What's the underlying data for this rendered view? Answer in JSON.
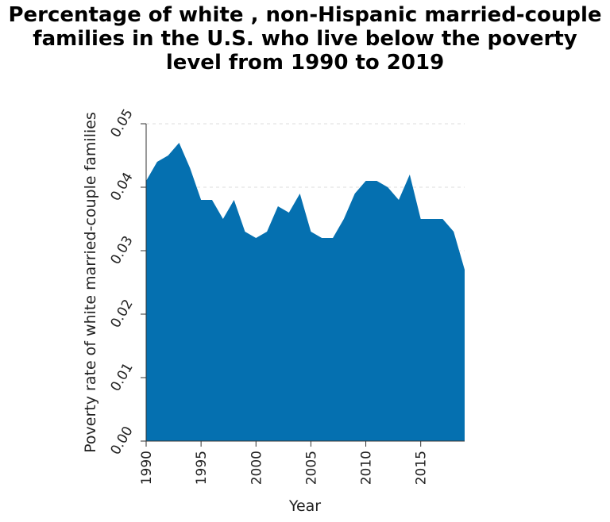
{
  "chart_data": {
    "type": "area",
    "title_lines": [
      "Percentage of white , non-Hispanic married-couple",
      "families in the U.S. who live below the poverty",
      "level from 1990 to 2019"
    ],
    "xlabel": "Year",
    "ylabel": "Poverty rate of white married-couple families",
    "xlim": [
      1990,
      2019
    ],
    "ylim": [
      0,
      0.05
    ],
    "x_ticks": [
      "1990",
      "1995",
      "2000",
      "2005",
      "2010",
      "2015"
    ],
    "y_ticks": [
      "0.00",
      "0.01",
      "0.02",
      "0.03",
      "0.04",
      "0.05"
    ],
    "grid": "horizontal",
    "series_color": "#0570b0",
    "grid_color": "#dddddd",
    "x": [
      1990,
      1991,
      1992,
      1993,
      1994,
      1995,
      1996,
      1997,
      1998,
      1999,
      2000,
      2001,
      2002,
      2003,
      2004,
      2005,
      2006,
      2007,
      2008,
      2009,
      2010,
      2011,
      2012,
      2013,
      2014,
      2015,
      2016,
      2017,
      2018,
      2019
    ],
    "y": [
      0.041,
      0.044,
      0.045,
      0.047,
      0.043,
      0.038,
      0.038,
      0.035,
      0.038,
      0.033,
      0.032,
      0.033,
      0.037,
      0.036,
      0.039,
      0.033,
      0.032,
      0.032,
      0.035,
      0.039,
      0.041,
      0.041,
      0.04,
      0.038,
      0.042,
      0.035,
      0.035,
      0.035,
      0.033,
      0.027
    ]
  }
}
